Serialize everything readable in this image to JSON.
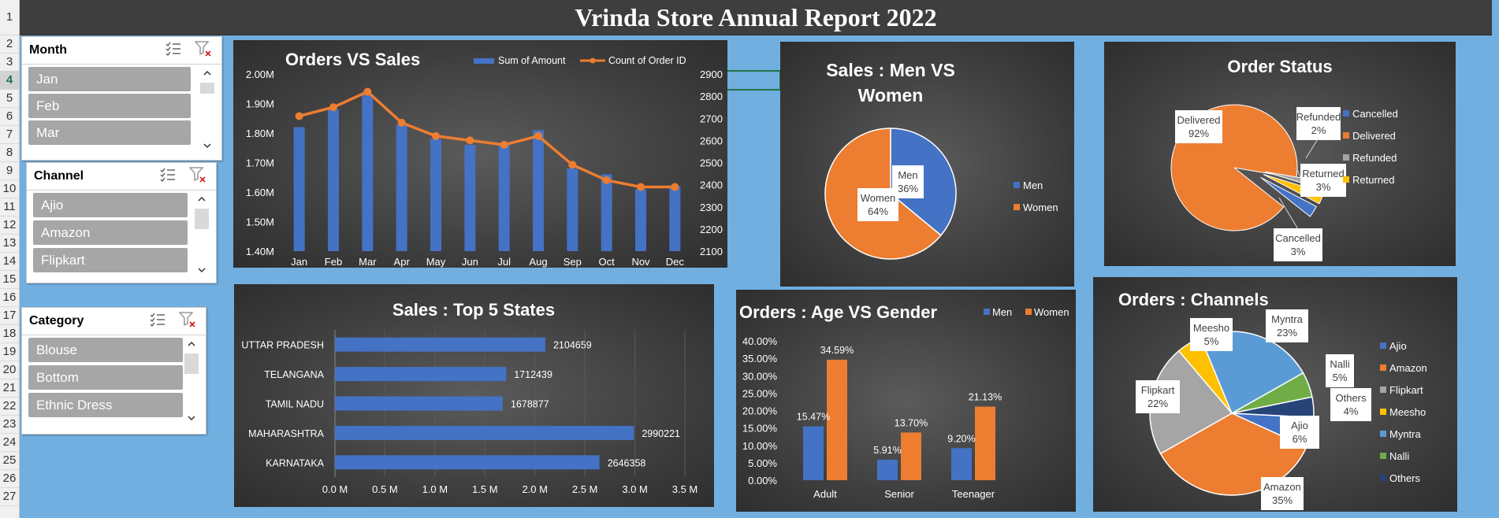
{
  "report": {
    "title": "Vrinda Store Annual Report 2022"
  },
  "row_headers": [
    "1",
    "2",
    "3",
    "4",
    "5",
    "6",
    "7",
    "8",
    "9",
    "10",
    "11",
    "12",
    "13",
    "14",
    "15",
    "16",
    "17",
    "18",
    "19",
    "20",
    "21",
    "22",
    "23",
    "24",
    "25",
    "26",
    "27"
  ],
  "slicers": {
    "month": {
      "title": "Month",
      "items": [
        "Jan",
        "Feb",
        "Mar"
      ]
    },
    "channel": {
      "title": "Channel",
      "items": [
        "Ajio",
        "Amazon",
        "Flipkart"
      ]
    },
    "category": {
      "title": "Category",
      "items": [
        "Blouse",
        "Bottom",
        "Ethnic Dress"
      ]
    }
  },
  "colors": {
    "blue": "#4472c4",
    "orange": "#ed7d31",
    "gray": "#a5a5a5",
    "yellow": "#ffc000",
    "lightblue": "#5b9bd5",
    "green": "#70ad47",
    "navy": "#264478",
    "text": "#ffffff",
    "axis": "#d9d9d9"
  },
  "chart_data": [
    {
      "id": "orders_vs_sales",
      "type": "bar",
      "title": "Orders VS Sales",
      "categories": [
        "Jan",
        "Feb",
        "Mar",
        "Apr",
        "May",
        "Jun",
        "Jul",
        "Aug",
        "Sep",
        "Oct",
        "Nov",
        "Dec"
      ],
      "series": [
        {
          "name": "Sum of Amount",
          "type": "bar",
          "axis": "left",
          "values": [
            1820000,
            1880000,
            1930000,
            1830000,
            1780000,
            1760000,
            1760000,
            1810000,
            1680000,
            1660000,
            1610000,
            1620000
          ]
        },
        {
          "name": "Count of Order ID",
          "type": "line",
          "axis": "right",
          "values": [
            2710,
            2750,
            2820,
            2680,
            2620,
            2600,
            2580,
            2620,
            2490,
            2420,
            2390,
            2390
          ]
        }
      ],
      "y_left": {
        "ticks": [
          "1.40M",
          "1.50M",
          "1.60M",
          "1.70M",
          "1.80M",
          "1.90M",
          "2.00M"
        ],
        "range": [
          1400000,
          2000000
        ]
      },
      "y_right": {
        "ticks": [
          "2100",
          "2200",
          "2300",
          "2400",
          "2500",
          "2600",
          "2700",
          "2800",
          "2900"
        ],
        "range": [
          2100,
          2900
        ]
      },
      "legend": "top-right"
    },
    {
      "id": "sales_men_women",
      "type": "pie",
      "title": "Sales : Men VS Women",
      "title_lines": [
        "Sales : Men VS",
        "Women"
      ],
      "slices": [
        {
          "label": "Men",
          "value": 36,
          "text": "36%"
        },
        {
          "label": "Women",
          "value": 64,
          "text": "64%"
        }
      ],
      "legend": "right"
    },
    {
      "id": "order_status",
      "type": "pie",
      "title": "Order Status",
      "slices": [
        {
          "label": "Delivered",
          "value": 92,
          "text": "92%"
        },
        {
          "label": "Refunded",
          "value": 2,
          "text": "2%"
        },
        {
          "label": "Returned",
          "value": 3,
          "text": "3%"
        },
        {
          "label": "Cancelled",
          "value": 3,
          "text": "3%"
        }
      ],
      "legend_items": [
        "Cancelled",
        "Delivered",
        "Refunded",
        "Returned"
      ],
      "legend": "right"
    },
    {
      "id": "top5_states",
      "type": "bar",
      "orientation": "horizontal",
      "title": "Sales : Top 5 States",
      "categories": [
        "UTTAR PRADESH",
        "TELANGANA",
        "TAMIL NADU",
        "MAHARASHTRA",
        "KARNATAKA"
      ],
      "values": [
        2104659,
        1712439,
        1678877,
        2990221,
        2646358
      ],
      "value_labels": [
        "2104659",
        "1712439",
        "1678877",
        "2990221",
        "2646358"
      ],
      "x_ticks": [
        "0.0 M",
        "0.5 M",
        "1.0 M",
        "1.5 M",
        "2.0 M",
        "2.5 M",
        "3.0 M",
        "3.5 M"
      ],
      "xlim": [
        0,
        3500000
      ]
    },
    {
      "id": "age_vs_gender",
      "type": "bar",
      "title": "Orders : Age VS Gender",
      "categories": [
        "Adult",
        "Senior",
        "Teenager"
      ],
      "series": [
        {
          "name": "Men",
          "values": [
            15.47,
            5.91,
            9.2
          ],
          "labels": [
            "15.47%",
            "5.91%",
            "9.20%"
          ]
        },
        {
          "name": "Women",
          "values": [
            34.59,
            13.7,
            21.13
          ],
          "labels": [
            "34.59%",
            "13.70%",
            "21.13%"
          ]
        }
      ],
      "y_ticks": [
        "0.00%",
        "5.00%",
        "10.00%",
        "15.00%",
        "20.00%",
        "25.00%",
        "30.00%",
        "35.00%",
        "40.00%"
      ],
      "ylim": [
        0,
        40
      ],
      "legend": "top-right"
    },
    {
      "id": "orders_channels",
      "type": "pie",
      "title": "Orders : Channels",
      "slices": [
        {
          "label": "Ajio",
          "value": 6,
          "text": "6%"
        },
        {
          "label": "Amazon",
          "value": 35,
          "text": "35%"
        },
        {
          "label": "Flipkart",
          "value": 22,
          "text": "22%"
        },
        {
          "label": "Meesho",
          "value": 5,
          "text": "5%"
        },
        {
          "label": "Myntra",
          "value": 23,
          "text": "23%"
        },
        {
          "label": "Nalli",
          "value": 5,
          "text": "5%"
        },
        {
          "label": "Others",
          "value": 4,
          "text": "4%"
        }
      ],
      "legend": "right"
    }
  ]
}
